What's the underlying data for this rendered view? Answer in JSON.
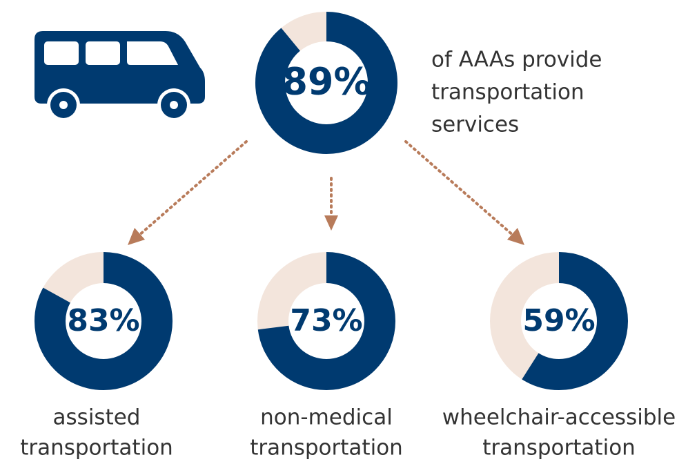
{
  "chart_data": [
    {
      "type": "donut",
      "values": [
        89
      ],
      "value_labels": [
        "89%"
      ],
      "caption": [
        "of AAAs provide",
        "transportation",
        "services"
      ],
      "color": "#003a70",
      "track_color": "#f3e5dc"
    },
    {
      "type": "donut",
      "values": [
        83
      ],
      "value_labels": [
        "83%"
      ],
      "caption": [
        "assisted",
        "transportation"
      ],
      "color": "#003a70",
      "track_color": "#f3e5dc"
    },
    {
      "type": "donut",
      "values": [
        73
      ],
      "value_labels": [
        "73%"
      ],
      "caption": [
        "non-medical",
        "transportation"
      ],
      "color": "#003a70",
      "track_color": "#f3e5dc"
    },
    {
      "type": "donut",
      "values": [
        59
      ],
      "value_labels": [
        "59%"
      ],
      "caption": [
        "wheelchair-accessible",
        "transportation"
      ],
      "color": "#003a70",
      "track_color": "#f3e5dc"
    }
  ]
}
